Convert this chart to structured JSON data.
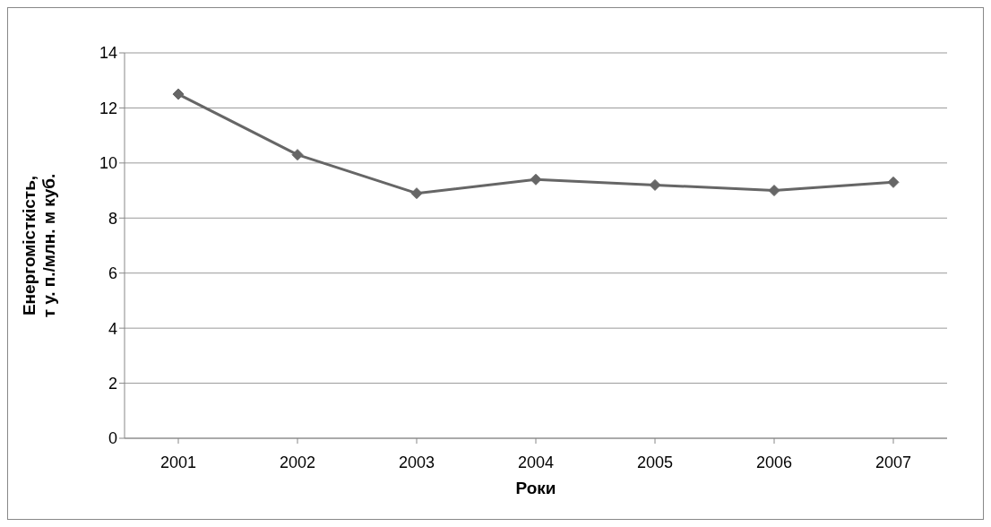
{
  "chart_data": {
    "type": "line",
    "xlabel": "Роки",
    "ylabel": "Енергомісткість,\nт у. п./млн. м куб.",
    "categories": [
      "2001",
      "2002",
      "2003",
      "2004",
      "2005",
      "2006",
      "2007"
    ],
    "series": [
      {
        "color": "#666666",
        "values": [
          12.5,
          10.3,
          8.9,
          9.4,
          9.2,
          9.0,
          9.3
        ]
      }
    ],
    "ylim": [
      0,
      14
    ],
    "yticks": [
      0,
      2,
      4,
      6,
      8,
      10,
      12,
      14
    ],
    "grid": "y",
    "marker": "diamond",
    "line_style": "solid"
  }
}
